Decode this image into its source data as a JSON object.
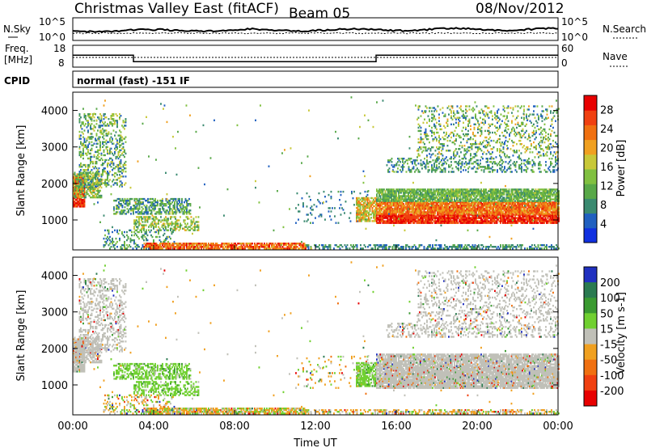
{
  "header": {
    "title": "Christmas Valley East (fitACF)",
    "beam": "Beam 05",
    "date": "08/Nov/2012"
  },
  "panels": {
    "nsky": {
      "label": "N.Sky",
      "ticks": [
        "10^5",
        "10^0"
      ],
      "right_label": "N.Search",
      "right_ticks": [
        "10^5",
        "10^0"
      ]
    },
    "freq": {
      "label_line1": "Freq.",
      "label_line2": "[MHz]",
      "ticks": [
        "18",
        "8"
      ],
      "right_label": "Nave",
      "right_ticks": [
        "60",
        "0"
      ]
    },
    "cpid": {
      "label": "CPID",
      "value": "normal (fast) -151 IF"
    }
  },
  "chart_data": [
    {
      "type": "heatmap",
      "name": "power",
      "ylabel": "Slant Range [km]",
      "ylim": [
        180,
        4500
      ],
      "yticks": [
        1000,
        2000,
        3000,
        4000
      ],
      "colorbar_label": "Power [dB]",
      "colorbar_ticks": [
        4,
        8,
        12,
        16,
        20,
        24,
        28
      ],
      "colorbar_range": [
        0,
        31
      ],
      "colors": [
        "#1030e0",
        "#2060c0",
        "#3a8a70",
        "#58a848",
        "#80c040",
        "#c8c838",
        "#f0a020",
        "#f07010",
        "#f04010",
        "#e80000"
      ]
    },
    {
      "type": "heatmap",
      "name": "velocity",
      "ylabel": "Slant Range [km]",
      "xlabel": "Time UT",
      "ylim": [
        180,
        4500
      ],
      "yticks": [
        1000,
        2000,
        3000,
        4000
      ],
      "xticks": [
        "00:00",
        "04:00",
        "08:00",
        "12:00",
        "16:00",
        "20:00",
        "00:00"
      ],
      "xlim_hours": [
        0,
        24
      ],
      "colorbar_label": "Velocity [m s-1]",
      "colorbar_ticks": [
        200,
        100,
        50,
        15,
        -15,
        -50,
        -100,
        -200
      ],
      "colors": [
        "#2030c0",
        "#2a7a50",
        "#3a9a30",
        "#70d030",
        "#c0c0b8",
        "#f0a020",
        "#f07010",
        "#f04010",
        "#e80000"
      ]
    }
  ],
  "freq_line": {
    "segments": [
      {
        "from": 0,
        "to": 3.0,
        "value": 13.5
      },
      {
        "from": 3.0,
        "to": 15.0,
        "value": 10.5
      },
      {
        "from": 15.0,
        "to": 24,
        "value": 13.5
      }
    ]
  }
}
